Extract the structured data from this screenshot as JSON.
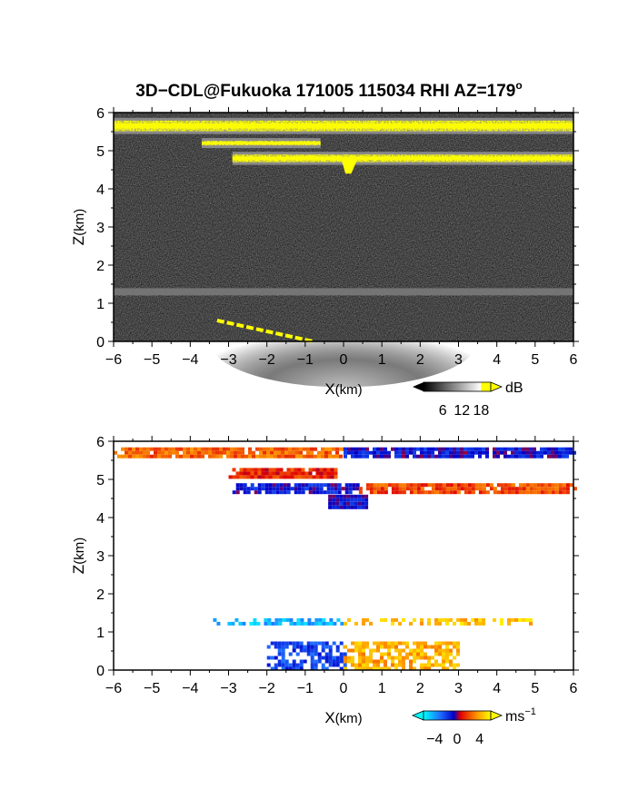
{
  "title_main": "3D−CDL@Fukuoka 171005 115034 RHI AZ=179",
  "title_sup": "o",
  "chart_data": [
    {
      "type": "heatmap",
      "name": "reflectivity",
      "xlabel_main": "X",
      "xlabel_unit": "(km)",
      "ylabel_main": "Z",
      "ylabel_unit": "(km)",
      "xlim": [
        -6,
        6
      ],
      "ylim": [
        0,
        6
      ],
      "xticks": [
        "−6",
        "−5",
        "−4",
        "−3",
        "−2",
        "−1",
        "0",
        "1",
        "2",
        "3",
        "4",
        "5",
        "6"
      ],
      "yticks": [
        "0",
        "1",
        "2",
        "3",
        "4",
        "5",
        "6"
      ],
      "colorbar": {
        "unit": "dB",
        "ticks": [
          "6",
          "12",
          "18"
        ],
        "range": [
          0,
          21
        ]
      },
      "features": [
        {
          "feature": "yellow high-signal layer",
          "z_km": 5.65,
          "x_from": -6,
          "x_to": 6
        },
        {
          "feature": "yellow high-signal layer",
          "z_km": 5.2,
          "x_from": -3.7,
          "x_to": -0.6
        },
        {
          "feature": "yellow high-signal layer",
          "z_km": 4.8,
          "x_from": -2.9,
          "x_to": 6
        },
        {
          "feature": "grey boundary layer",
          "z_km": 1.3,
          "x_from": -6,
          "x_to": 6
        },
        {
          "feature": "bright near-ground echo",
          "z_km": 0.3,
          "x_from": -3.5,
          "x_to": 3
        }
      ]
    },
    {
      "type": "heatmap",
      "name": "doppler velocity",
      "xlabel_main": "X",
      "xlabel_unit": "(km)",
      "ylabel_main": "Z",
      "ylabel_unit": "(km)",
      "xlim": [
        -6,
        6
      ],
      "ylim": [
        0,
        6
      ],
      "xticks": [
        "−6",
        "−5",
        "−4",
        "−3",
        "−2",
        "−1",
        "0",
        "1",
        "2",
        "3",
        "4",
        "5",
        "6"
      ],
      "yticks": [
        "0",
        "1",
        "2",
        "3",
        "4",
        "5",
        "6"
      ],
      "colorbar": {
        "unit": "ms",
        "unit_sup": "−1",
        "ticks": [
          "−4",
          "0",
          "4"
        ],
        "range": [
          -6,
          6
        ]
      },
      "features": [
        {
          "feature": "velocity layer",
          "z_km": 5.7,
          "x_from": -6,
          "x_to": 0,
          "v": 2.5
        },
        {
          "feature": "velocity layer",
          "z_km": 5.7,
          "x_from": 0,
          "x_to": 6,
          "v": -1
        },
        {
          "feature": "velocity layer",
          "z_km": 5.2,
          "x_from": -3,
          "x_to": 0,
          "v": 1.5
        },
        {
          "feature": "velocity layer",
          "z_km": 4.8,
          "x_from": -2.9,
          "x_to": 0.4,
          "v": -1
        },
        {
          "feature": "velocity layer",
          "z_km": 4.8,
          "x_from": 0.4,
          "x_to": 6,
          "v": 2
        },
        {
          "feature": "velocity layer",
          "z_km": 1.3,
          "x_from": -3.5,
          "x_to": 0,
          "v": -4.5
        },
        {
          "feature": "velocity layer",
          "z_km": 1.3,
          "x_from": 0,
          "x_to": 5,
          "v": 4.5
        },
        {
          "feature": "near-ground echo",
          "z_km": 0.4,
          "x_from": -2,
          "x_to": 0,
          "v": -2
        },
        {
          "feature": "near-ground echo",
          "z_km": 0.4,
          "x_from": 0,
          "x_to": 3,
          "v": 4
        }
      ]
    }
  ]
}
